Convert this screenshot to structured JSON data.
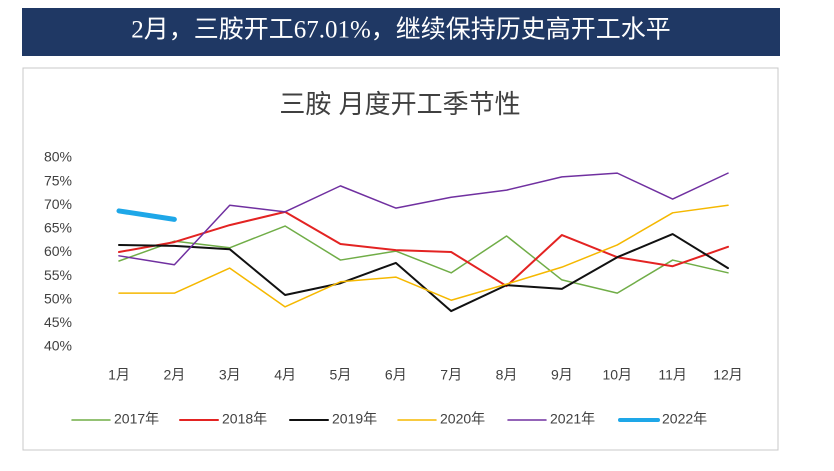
{
  "header": {
    "title": "2月，三胺开工67.01%，继续保持历史高开工水平"
  },
  "chart_data": {
    "type": "line",
    "title": "三胺 月度开工季节性",
    "categories": [
      "1月",
      "2月",
      "3月",
      "4月",
      "5月",
      "6月",
      "7月",
      "8月",
      "9月",
      "10月",
      "11月",
      "12月"
    ],
    "ylim": [
      40,
      80
    ],
    "yticks": [
      {
        "value": 40,
        "label": "40%"
      },
      {
        "value": 45,
        "label": "45%"
      },
      {
        "value": 50,
        "label": "50%"
      },
      {
        "value": 55,
        "label": "55%"
      },
      {
        "value": 60,
        "label": "60%"
      },
      {
        "value": 65,
        "label": "65%"
      },
      {
        "value": 70,
        "label": "70%"
      },
      {
        "value": 75,
        "label": "75%"
      },
      {
        "value": 80,
        "label": "80%"
      }
    ],
    "grid": false,
    "legend": "bottom",
    "series": [
      {
        "name": "2017年",
        "color": "#70ad47",
        "width": 1.5,
        "values": [
          58.2,
          62.4,
          61,
          65.6,
          58.4,
          60.3,
          55.7,
          63.5,
          54.2,
          51.4,
          58.4,
          55.7
        ]
      },
      {
        "name": "2018年",
        "color": "#e32322",
        "width": 2,
        "values": [
          60.1,
          62.2,
          65.8,
          68.6,
          61.8,
          60.5,
          60.1,
          52.9,
          63.7,
          59,
          57.1,
          61.2
        ]
      },
      {
        "name": "2019年",
        "color": "#111111",
        "width": 2,
        "values": [
          61.6,
          61.4,
          60.7,
          51,
          53.5,
          57.8,
          47.6,
          53.1,
          52.3,
          59,
          63.9,
          56.7
        ]
      },
      {
        "name": "2020年",
        "color": "#f5b800",
        "width": 1.5,
        "values": [
          51.4,
          51.4,
          56.7,
          48.5,
          53.8,
          54.8,
          49.9,
          53.3,
          56.9,
          61.6,
          68.4,
          70
        ]
      },
      {
        "name": "2021年",
        "color": "#7030a0",
        "width": 1.5,
        "values": [
          59.3,
          57.4,
          70,
          68.6,
          74.1,
          69.4,
          71.7,
          73.2,
          76,
          76.8,
          71.3,
          76.8
        ]
      },
      {
        "name": "2022年",
        "color": "#1ea7e8",
        "width": 5,
        "values": [
          68.8,
          67.01,
          null,
          null,
          null,
          null,
          null,
          null,
          null,
          null,
          null,
          null
        ]
      }
    ]
  }
}
